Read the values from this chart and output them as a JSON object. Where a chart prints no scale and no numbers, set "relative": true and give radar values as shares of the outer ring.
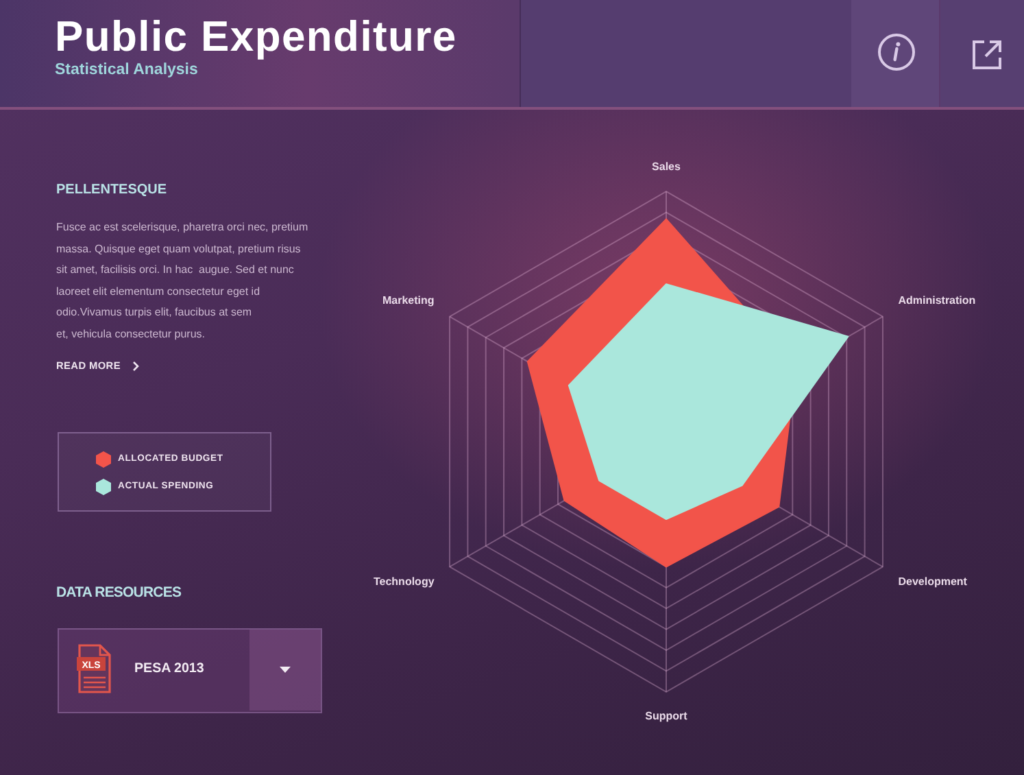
{
  "chart_data": {
    "type": "radar",
    "title": "Public Expenditure",
    "subtitle": "Statistical Analysis",
    "categories": [
      "Sales",
      "Administration",
      "Development",
      "Support",
      "Technology",
      "Marketing"
    ],
    "relative": true,
    "series": [
      {
        "name": "ALLOCATED BUDGET",
        "color": "#f2544a",
        "values": [
          0.89,
          0.6,
          0.52,
          0.5,
          0.47,
          0.64
        ]
      },
      {
        "name": "ACTUAL SPENDING",
        "color": "#aae7dc",
        "values": [
          0.63,
          0.84,
          0.35,
          0.31,
          0.31,
          0.45
        ]
      }
    ],
    "grid": true,
    "legend": "left",
    "annotations": [
      "PELLENTESQUE",
      "Fusce ac est scelerisque, pharetra orci nec, pretium\nmassa. Quisque eget quam volutpat, pretium risus\nsit amet, facilisis orci. In hac  augue. Sed et nunc\nlaoreet elit elementum consectetur eget id\nodio.Vivamus turpis elit, faucibus at sem\net, vehicula consectetur purus.",
      "READ MORE",
      "DATA RESOURCES",
      "PESA 2013",
      "XLS"
    ]
  }
}
